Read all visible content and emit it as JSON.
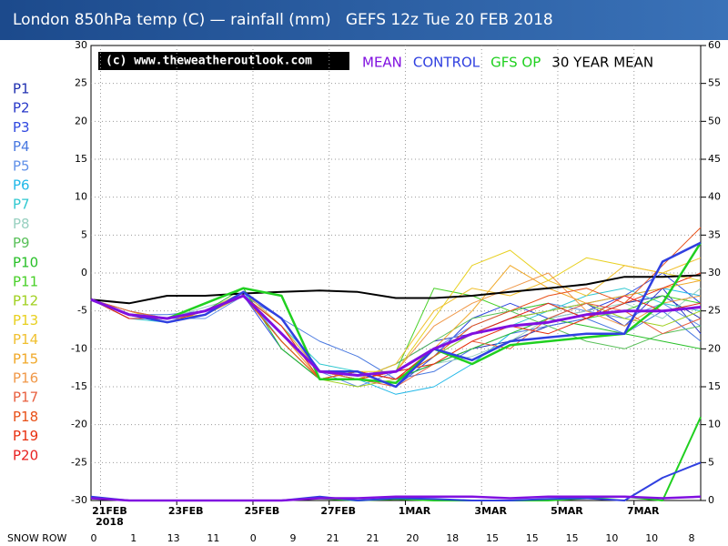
{
  "chart_data": {
    "type": "line",
    "title": "London 850hPa temp (C) — rainfall (mm)   GEFS 12z Tue 20 FEB 2018",
    "watermark": "(c) www.theweatheroutlook.com",
    "x": [
      -0.25,
      0.75,
      1.75,
      2.75,
      3.75,
      4.75,
      5.75,
      6.75,
      7.75,
      8.75,
      9.75,
      10.75,
      11.75,
      12.75,
      13.75,
      14.75,
      15.75
    ],
    "xlim": [
      -0.25,
      15.75
    ],
    "xticks": [
      {
        "value": 0,
        "label": "21FEB"
      },
      {
        "value": 2,
        "label": "23FEB"
      },
      {
        "value": 4,
        "label": "25FEB"
      },
      {
        "value": 6,
        "label": "27FEB"
      },
      {
        "value": 8,
        "label": "1MAR"
      },
      {
        "value": 10,
        "label": "3MAR"
      },
      {
        "value": 12,
        "label": "5MAR"
      },
      {
        "value": 14,
        "label": "7MAR"
      }
    ],
    "x_year": "2018",
    "ylim": [
      -30,
      30
    ],
    "yticks": [
      -30,
      -25,
      -20,
      -15,
      -10,
      -5,
      0,
      5,
      10,
      15,
      20,
      25,
      30
    ],
    "y2lim": [
      0,
      60
    ],
    "y2ticks": [
      0,
      5,
      10,
      15,
      20,
      25,
      30,
      35,
      40,
      45,
      50,
      55,
      60
    ],
    "grid": true,
    "snow_row": {
      "label": "SNOW ROW",
      "values": [
        0,
        1,
        13,
        11,
        0,
        9,
        21,
        21,
        20,
        18,
        15,
        15,
        15,
        10,
        10,
        8
      ]
    },
    "series": [
      {
        "name": "P1",
        "color": "#2030b0",
        "values": [
          -3.5,
          -5.5,
          -6,
          -5,
          -3,
          -9,
          -14,
          -13,
          -14,
          -12,
          -10,
          -9,
          -7,
          -6,
          -4,
          -3,
          -6
        ]
      },
      {
        "name": "P2",
        "color": "#2838c8",
        "values": [
          -3.5,
          -5,
          -6.5,
          -5.5,
          -2.5,
          -7,
          -13,
          -14,
          -12,
          -9,
          -8,
          -6,
          -5,
          -4,
          -7,
          -2,
          -8
        ]
      },
      {
        "name": "P3",
        "color": "#3048e0",
        "values": [
          -3.5,
          -6,
          -6,
          -5,
          -3,
          -10,
          -14,
          -13,
          -15,
          -11,
          -6,
          -4,
          -6,
          -5,
          -3,
          0,
          -4
        ]
      },
      {
        "name": "P4",
        "color": "#4878e0",
        "values": [
          -3.5,
          -5.5,
          -5.5,
          -5,
          -3,
          -6,
          -9,
          -11,
          -14,
          -13,
          -10,
          -8,
          -7,
          -6,
          -8,
          -5,
          -9
        ]
      },
      {
        "name": "P5",
        "color": "#6090e8",
        "values": [
          -3.5,
          -5,
          -6,
          -6,
          -3,
          -8,
          -13,
          -15,
          -13,
          -10,
          -7,
          -5,
          -4,
          -5,
          -6,
          -4,
          -7
        ]
      },
      {
        "name": "P6",
        "color": "#20b8e8",
        "values": [
          -3.5,
          -5.5,
          -6,
          -5,
          -2.5,
          -9,
          -14,
          -14,
          -16,
          -15,
          -12,
          -8,
          -6,
          -4,
          -3,
          -2,
          -3
        ]
      },
      {
        "name": "P7",
        "color": "#30c8d0",
        "values": [
          -3.5,
          -6,
          -6.5,
          -5,
          -3,
          -7,
          -12,
          -13,
          -14,
          -11,
          -8,
          -7,
          -5,
          -3,
          -2,
          -4,
          -5
        ]
      },
      {
        "name": "P8",
        "color": "#98d0c0",
        "values": [
          -3.5,
          -5.5,
          -6,
          -4.5,
          -3,
          -8,
          -13,
          -14,
          -13,
          -12,
          -11,
          -9,
          -6,
          -5,
          -4,
          -6,
          -2
        ]
      },
      {
        "name": "P9",
        "color": "#58c058",
        "values": [
          -3.5,
          -5,
          -6,
          -5,
          -3,
          -9,
          -14,
          -14,
          -12,
          -9,
          -6,
          -5,
          -7,
          -9,
          -10,
          -8,
          -7
        ]
      },
      {
        "name": "P10",
        "color": "#28c028",
        "values": [
          -3.5,
          -5.5,
          -6,
          -5,
          -2,
          -10,
          -14,
          -13,
          -14,
          -12,
          -10,
          -8,
          -6,
          -7,
          -8,
          -9,
          -10
        ]
      },
      {
        "name": "P11",
        "color": "#48d028",
        "values": [
          -3.5,
          -6,
          -6,
          -5.5,
          -3,
          -8,
          -13,
          -14,
          -13,
          -2,
          -3,
          -5,
          -4,
          -6,
          -5,
          -3,
          -4
        ]
      },
      {
        "name": "P12",
        "color": "#a0d020",
        "values": [
          -3.5,
          -5.5,
          -6,
          -5,
          -3,
          -9,
          -14,
          -15,
          -14,
          -11,
          -8,
          -6,
          -5,
          -4,
          -6,
          -7,
          -5
        ]
      },
      {
        "name": "P13",
        "color": "#e8d020",
        "values": [
          -3.5,
          -5,
          -6.5,
          -5,
          -3,
          -8,
          -14,
          -13,
          -13,
          -6,
          1,
          3,
          -1,
          2,
          1,
          0,
          -1
        ]
      },
      {
        "name": "P14",
        "color": "#f0c030",
        "values": [
          -3.5,
          -5.5,
          -6,
          -5,
          -2.5,
          -7,
          -13,
          -14,
          -12,
          -5,
          -2,
          -3,
          -1,
          -3,
          1,
          0,
          2
        ]
      },
      {
        "name": "P15",
        "color": "#f0a828",
        "values": [
          -3.5,
          -6,
          -6,
          -5.5,
          -3,
          -9,
          -14,
          -13,
          -14,
          -10,
          -5,
          1,
          -2,
          -4,
          -3,
          -2,
          -1
        ]
      },
      {
        "name": "P16",
        "color": "#f09848",
        "values": [
          -3.5,
          -5.5,
          -6,
          -5,
          -3,
          -8,
          -14,
          -14,
          -13,
          -7,
          -4,
          -2,
          0,
          -5,
          -7,
          -4,
          -3
        ]
      },
      {
        "name": "P17",
        "color": "#e86040",
        "values": [
          -3.5,
          -5,
          -6,
          -5,
          -3,
          -8,
          -13,
          -14,
          -15,
          -12,
          -9,
          -10,
          -6,
          -4,
          -5,
          -8,
          -6
        ]
      },
      {
        "name": "P18",
        "color": "#e85018",
        "values": [
          -3.5,
          -5.5,
          -6,
          -5,
          -3,
          -9,
          -14,
          -13,
          -14,
          -11,
          -7,
          -5,
          -3,
          -2,
          -4,
          1,
          6
        ]
      },
      {
        "name": "P19",
        "color": "#e83010",
        "values": [
          -3.5,
          -5.5,
          -6.5,
          -5,
          -3,
          -7,
          -14,
          -14,
          -13,
          -12,
          -9,
          -7,
          -8,
          -6,
          -4,
          -2,
          0
        ]
      },
      {
        "name": "P20",
        "color": "#e82020",
        "values": [
          -3.5,
          -6,
          -6,
          -5,
          -3,
          -8,
          -13,
          -13,
          -14,
          -10,
          -8,
          -6,
          -4,
          -6,
          -3,
          -5,
          -4
        ]
      },
      {
        "name": "30 YEAR MEAN",
        "color": "#000000",
        "values": [
          -3.5,
          -4,
          -3,
          -3,
          -2.7,
          -2.5,
          -2.3,
          -2.5,
          -3.3,
          -3.3,
          -3,
          -2.5,
          -2,
          -1.5,
          -0.5,
          -0.5,
          -0.3
        ]
      },
      {
        "name": "GFS OP",
        "color": "#20d020",
        "values": [
          -3.5,
          -5.5,
          -6,
          -4,
          -2,
          -3,
          -14,
          -14,
          -14.5,
          -10,
          -12,
          -9.5,
          -9,
          -8.5,
          -8,
          -4,
          4
        ],
        "rainfall": [
          0.3,
          0,
          0,
          0,
          0,
          0,
          0.3,
          0,
          0.2,
          0,
          0,
          0,
          0,
          0.3,
          0.5,
          0,
          11
        ]
      },
      {
        "name": "CONTROL",
        "color": "#3040e0",
        "values": [
          -3.5,
          -5.5,
          -6.5,
          -5.5,
          -2.5,
          -6,
          -13,
          -13,
          -15,
          -10,
          -11.5,
          -9,
          -8.5,
          -8,
          -8,
          1.5,
          4
        ],
        "rainfall": [
          0.5,
          0,
          0,
          0,
          0,
          0,
          0.5,
          0,
          0.3,
          0.2,
          0,
          0,
          0.2,
          0.3,
          0,
          3,
          5
        ]
      },
      {
        "name": "MEAN",
        "color": "#8010e0",
        "values": [
          -3.5,
          -5.5,
          -6,
          -5,
          -3,
          -8,
          -13,
          -13.5,
          -13,
          -10,
          -8,
          -7,
          -6.5,
          -5.5,
          -5,
          -5,
          -4.5
        ],
        "rainfall": [
          0.3,
          0,
          0,
          0,
          0,
          0,
          0.3,
          0.3,
          0.5,
          0.5,
          0.5,
          0.3,
          0.5,
          0.5,
          0.5,
          0.3,
          0.5
        ]
      }
    ]
  }
}
